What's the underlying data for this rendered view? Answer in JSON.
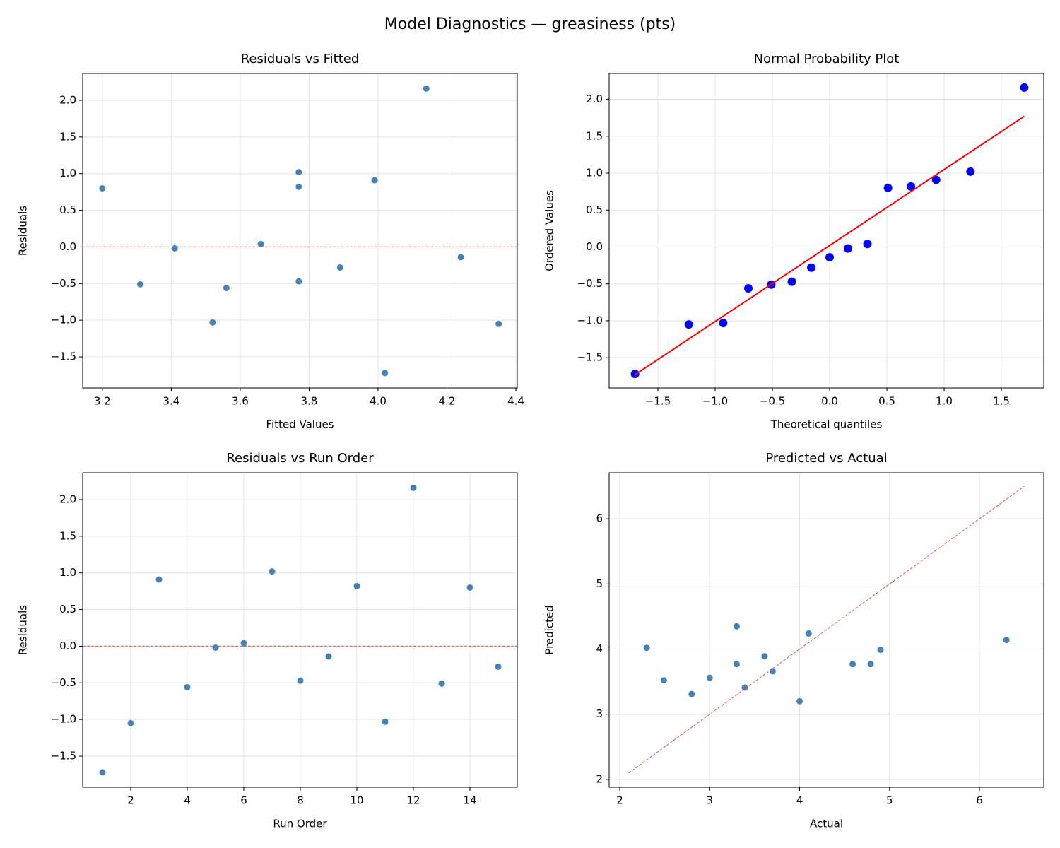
{
  "title": "Model Diagnostics — greasiness (pts)",
  "chart_data": [
    {
      "type": "scatter",
      "title": "Residuals vs Fitted",
      "xlabel": "Fitted Values",
      "ylabel": "Residuals",
      "xlim": [
        3.143,
        4.404
      ],
      "ylim": [
        -1.924,
        2.366
      ],
      "xticks": [
        3.2,
        3.4,
        3.6,
        3.8,
        {
          "value": 4,
          "label": "4.0"
        },
        4.2,
        4.4
      ],
      "yticks": [
        {
          "value": -1.5,
          "label": "−1.5"
        },
        {
          "value": -1,
          "label": "−1.0"
        },
        {
          "value": -0.5,
          "label": "−0.5"
        },
        {
          "value": 0,
          "label": "0.0"
        },
        0.5,
        {
          "value": 1,
          "label": "1.0"
        },
        1.5,
        {
          "value": 2,
          "label": "2.0"
        }
      ],
      "grid": true,
      "reference_y": 0,
      "reference_color": "#e05050",
      "series": [
        {
          "type": "scatter",
          "color": "#4682b4",
          "x": [
            4.02,
            4.35,
            3.99,
            3.56,
            3.41,
            3.66,
            3.77,
            3.77,
            4.24,
            3.77,
            3.52,
            4.14,
            3.31,
            3.2,
            3.89
          ],
          "values": [
            -1.72,
            -1.05,
            0.91,
            -0.56,
            -0.02,
            0.04,
            1.02,
            -0.47,
            -0.14,
            0.82,
            -1.03,
            2.16,
            -0.51,
            0.8,
            -0.28
          ]
        }
      ]
    },
    {
      "type": "scatter",
      "title": "Normal Probability Plot",
      "xlabel": "Theoretical quantiles",
      "ylabel": "Ordered Values",
      "xlim": [
        -1.926,
        1.87
      ],
      "ylim": [
        -1.91,
        2.35
      ],
      "xticks": [
        {
          "value": -1.5,
          "label": "−1.5"
        },
        {
          "value": -1,
          "label": "−1.0"
        },
        {
          "value": -0.5,
          "label": "−0.5"
        },
        {
          "value": 0,
          "label": "0.0"
        },
        0.5,
        {
          "value": 1,
          "label": "1.0"
        },
        1.5
      ],
      "yticks": [
        {
          "value": -1.5,
          "label": "−1.5"
        },
        {
          "value": -1,
          "label": "−1.0"
        },
        {
          "value": -0.5,
          "label": "−0.5"
        },
        {
          "value": 0,
          "label": "0.0"
        },
        0.5,
        {
          "value": 1,
          "label": "1.0"
        },
        1.5,
        {
          "value": 2,
          "label": "2.0"
        }
      ],
      "grid": true,
      "series": [
        {
          "type": "scatter",
          "color": "#0000ff",
          "size": 6,
          "x": [
            -1.7,
            -1.23,
            -0.93,
            -0.71,
            -0.51,
            -0.33,
            -0.16,
            0,
            0.16,
            0.33,
            0.51,
            0.71,
            0.93,
            1.23,
            1.7
          ],
          "values": [
            -1.72,
            -1.05,
            -1.03,
            -0.56,
            -0.51,
            -0.47,
            -0.28,
            -0.14,
            -0.02,
            0.04,
            0.8,
            0.82,
            0.91,
            1.02,
            2.16
          ]
        },
        {
          "type": "line",
          "color": "#ff0000",
          "x": [
            -1.7,
            1.7
          ],
          "values": [
            -1.73,
            1.77
          ]
        }
      ]
    },
    {
      "type": "scatter",
      "title": "Residuals vs Run Order",
      "xlabel": "Run Order",
      "ylabel": "Residuals",
      "xlim": [
        0.3,
        15.675
      ],
      "ylim": [
        -1.924,
        2.366
      ],
      "xticks": [
        2,
        4,
        6,
        8,
        10,
        12,
        14
      ],
      "yticks": [
        {
          "value": -1.5,
          "label": "−1.5"
        },
        {
          "value": -1,
          "label": "−1.0"
        },
        {
          "value": -0.5,
          "label": "−0.5"
        },
        {
          "value": 0,
          "label": "0.0"
        },
        0.5,
        {
          "value": 1,
          "label": "1.0"
        },
        1.5,
        {
          "value": 2,
          "label": "2.0"
        }
      ],
      "grid": true,
      "reference_y": 0,
      "reference_color": "#e05050",
      "series": [
        {
          "type": "scatter",
          "color": "#4682b4",
          "x": [
            1,
            2,
            3,
            4,
            5,
            6,
            7,
            8,
            9,
            10,
            11,
            12,
            13,
            14,
            15
          ],
          "values": [
            -1.72,
            -1.05,
            0.91,
            -0.56,
            -0.02,
            0.04,
            1.02,
            -0.47,
            -0.14,
            0.82,
            -1.03,
            2.16,
            -0.51,
            0.8,
            -0.28
          ]
        }
      ]
    },
    {
      "type": "scatter",
      "title": "Predicted vs Actual",
      "xlabel": "Actual",
      "ylabel": "Predicted",
      "xlim": [
        1.882,
        6.715
      ],
      "ylim": [
        1.88,
        6.707
      ],
      "xticks": [
        2,
        3,
        4,
        5,
        6
      ],
      "yticks": [
        2,
        3,
        4,
        5,
        6
      ],
      "grid": true,
      "series": [
        {
          "type": "scatter",
          "color": "#4682b4",
          "x": [
            2.3,
            3.3,
            4.9,
            3.0,
            3.39,
            3.7,
            4.79,
            3.3,
            4.1,
            4.59,
            2.49,
            6.3,
            2.8,
            4.0,
            3.61
          ],
          "values": [
            4.02,
            4.35,
            3.99,
            3.56,
            3.41,
            3.66,
            3.77,
            3.77,
            4.24,
            3.77,
            3.52,
            4.14,
            3.31,
            3.2,
            3.89
          ]
        },
        {
          "type": "line",
          "color": "#e05050",
          "dashed": true,
          "x": [
            2.1,
            6.5
          ],
          "values": [
            2.1,
            6.5
          ]
        }
      ]
    }
  ]
}
